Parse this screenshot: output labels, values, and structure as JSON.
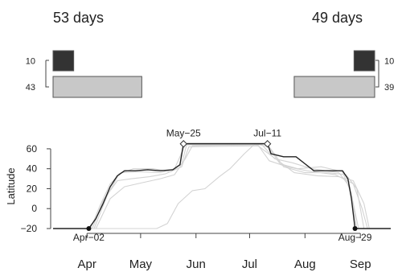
{
  "chart_data": {
    "type": "line",
    "y_axis": {
      "label": "Latitude",
      "ticks": [
        60,
        40,
        20,
        0,
        -20
      ],
      "ylim": [
        -20,
        68
      ]
    },
    "x_axis": {
      "tick_labels": [
        "Apr",
        "May",
        "Jun",
        "Jul",
        "Aug",
        "Sep"
      ],
      "tick_dates": [
        "2000-04-01",
        "2000-05-01",
        "2000-06-01",
        "2000-07-01",
        "2000-08-01",
        "2000-09-01"
      ],
      "xlim": [
        "2000-03-13",
        "2000-09-18"
      ]
    },
    "grid": false,
    "colors": {
      "highlight": "#222222",
      "background_tracks": "#d3d3d3",
      "dark_bar": "#333333",
      "light_bar": "#c8c8c8"
    },
    "duration_panels": [
      {
        "position": "left",
        "days_label": "53 days",
        "days": 53,
        "bars": [
          {
            "value": 10,
            "label": "10",
            "color": "#333333"
          },
          {
            "value": 43,
            "label": "43",
            "color": "#c8c8c8"
          }
        ]
      },
      {
        "position": "right",
        "days_label": "49 days",
        "days": 49,
        "bars": [
          {
            "value": 10,
            "label": "10",
            "color": "#333333"
          },
          {
            "value": 39,
            "label": "39",
            "color": "#c8c8c8"
          }
        ]
      }
    ],
    "annotations": [
      {
        "label": "Apr−02",
        "x": "2000-04-02",
        "y": -20,
        "marker": "filled-circle"
      },
      {
        "label": "May−25",
        "x": "2000-05-25",
        "y": 65,
        "marker": "open-diamond"
      },
      {
        "label": "Jul−11",
        "x": "2000-07-11",
        "y": 65,
        "marker": "open-diamond"
      },
      {
        "label": "Aug−29",
        "x": "2000-08-29",
        "y": -20,
        "marker": "filled-circle"
      }
    ],
    "series": [
      {
        "role": "highlight",
        "points": [
          [
            "2000-03-13",
            -20
          ],
          [
            "2000-04-02",
            -20
          ],
          [
            "2000-04-06",
            -10
          ],
          [
            "2000-04-10",
            5
          ],
          [
            "2000-04-14",
            22
          ],
          [
            "2000-04-18",
            33
          ],
          [
            "2000-04-22",
            38
          ],
          [
            "2000-04-28",
            38
          ],
          [
            "2000-05-05",
            39
          ],
          [
            "2000-05-12",
            38
          ],
          [
            "2000-05-19",
            39
          ],
          [
            "2000-05-23",
            44
          ],
          [
            "2000-05-25",
            65
          ],
          [
            "2000-07-11",
            65
          ],
          [
            "2000-07-13",
            55
          ],
          [
            "2000-07-20",
            52
          ],
          [
            "2000-07-27",
            52
          ],
          [
            "2000-08-01",
            45
          ],
          [
            "2000-08-06",
            38
          ],
          [
            "2000-08-15",
            38
          ],
          [
            "2000-08-22",
            38
          ],
          [
            "2000-08-25",
            30
          ],
          [
            "2000-08-27",
            10
          ],
          [
            "2000-08-29",
            -20
          ],
          [
            "2000-09-18",
            -20
          ]
        ]
      },
      {
        "role": "background",
        "points": [
          [
            "2000-03-13",
            -20
          ],
          [
            "2000-04-03",
            -20
          ],
          [
            "2000-04-08",
            2
          ],
          [
            "2000-04-14",
            25
          ],
          [
            "2000-04-20",
            36
          ],
          [
            "2000-05-01",
            37
          ],
          [
            "2000-05-12",
            36
          ],
          [
            "2000-05-20",
            40
          ],
          [
            "2000-05-26",
            64
          ],
          [
            "2000-07-08",
            64
          ],
          [
            "2000-07-15",
            50
          ],
          [
            "2000-07-25",
            46
          ],
          [
            "2000-08-05",
            40
          ],
          [
            "2000-08-20",
            36
          ],
          [
            "2000-08-26",
            22
          ],
          [
            "2000-08-31",
            -20
          ],
          [
            "2000-09-18",
            -20
          ]
        ]
      },
      {
        "role": "background",
        "points": [
          [
            "2000-03-13",
            -20
          ],
          [
            "2000-04-04",
            -20
          ],
          [
            "2000-04-10",
            8
          ],
          [
            "2000-04-18",
            28
          ],
          [
            "2000-04-26",
            30
          ],
          [
            "2000-05-06",
            32
          ],
          [
            "2000-05-15",
            35
          ],
          [
            "2000-05-24",
            42
          ],
          [
            "2000-05-28",
            62
          ],
          [
            "2000-07-06",
            63
          ],
          [
            "2000-07-12",
            48
          ],
          [
            "2000-07-22",
            42
          ],
          [
            "2000-08-02",
            38
          ],
          [
            "2000-08-18",
            34
          ],
          [
            "2000-08-28",
            25
          ],
          [
            "2000-09-02",
            0
          ],
          [
            "2000-09-05",
            -20
          ],
          [
            "2000-09-18",
            -20
          ]
        ]
      },
      {
        "role": "background",
        "points": [
          [
            "2000-03-13",
            -20
          ],
          [
            "2000-04-05",
            -20
          ],
          [
            "2000-04-12",
            12
          ],
          [
            "2000-04-19",
            35
          ],
          [
            "2000-04-27",
            40
          ],
          [
            "2000-05-08",
            40
          ],
          [
            "2000-05-18",
            37
          ],
          [
            "2000-05-24",
            45
          ],
          [
            "2000-05-27",
            66
          ],
          [
            "2000-07-10",
            66
          ],
          [
            "2000-07-18",
            45
          ],
          [
            "2000-07-28",
            40
          ],
          [
            "2000-08-10",
            42
          ],
          [
            "2000-08-22",
            37
          ],
          [
            "2000-08-27",
            15
          ],
          [
            "2000-08-30",
            -20
          ],
          [
            "2000-09-18",
            -20
          ]
        ]
      },
      {
        "role": "background",
        "points": [
          [
            "2000-03-13",
            -20
          ],
          [
            "2000-04-06",
            -20
          ],
          [
            "2000-04-14",
            10
          ],
          [
            "2000-04-22",
            22
          ],
          [
            "2000-05-02",
            26
          ],
          [
            "2000-05-12",
            30
          ],
          [
            "2000-05-20",
            34
          ],
          [
            "2000-05-26",
            50
          ],
          [
            "2000-05-30",
            63
          ],
          [
            "2000-07-05",
            64
          ],
          [
            "2000-07-14",
            52
          ],
          [
            "2000-07-26",
            36
          ],
          [
            "2000-08-08",
            33
          ],
          [
            "2000-08-20",
            32
          ],
          [
            "2000-08-28",
            28
          ],
          [
            "2000-09-03",
            5
          ],
          [
            "2000-09-06",
            -20
          ],
          [
            "2000-09-18",
            -20
          ]
        ]
      },
      {
        "role": "background",
        "points": [
          [
            "2000-03-13",
            -20
          ],
          [
            "2000-05-10",
            -20
          ],
          [
            "2000-05-16",
            -15
          ],
          [
            "2000-05-22",
            5
          ],
          [
            "2000-05-30",
            18
          ],
          [
            "2000-06-06",
            20
          ],
          [
            "2000-06-14",
            32
          ],
          [
            "2000-06-20",
            40
          ],
          [
            "2000-06-28",
            55
          ],
          [
            "2000-07-04",
            65
          ],
          [
            "2000-07-12",
            62
          ],
          [
            "2000-07-20",
            42
          ],
          [
            "2000-08-01",
            36
          ],
          [
            "2000-08-14",
            36
          ],
          [
            "2000-08-24",
            34
          ],
          [
            "2000-08-30",
            20
          ],
          [
            "2000-09-03",
            -20
          ],
          [
            "2000-09-18",
            -20
          ]
        ]
      }
    ]
  }
}
